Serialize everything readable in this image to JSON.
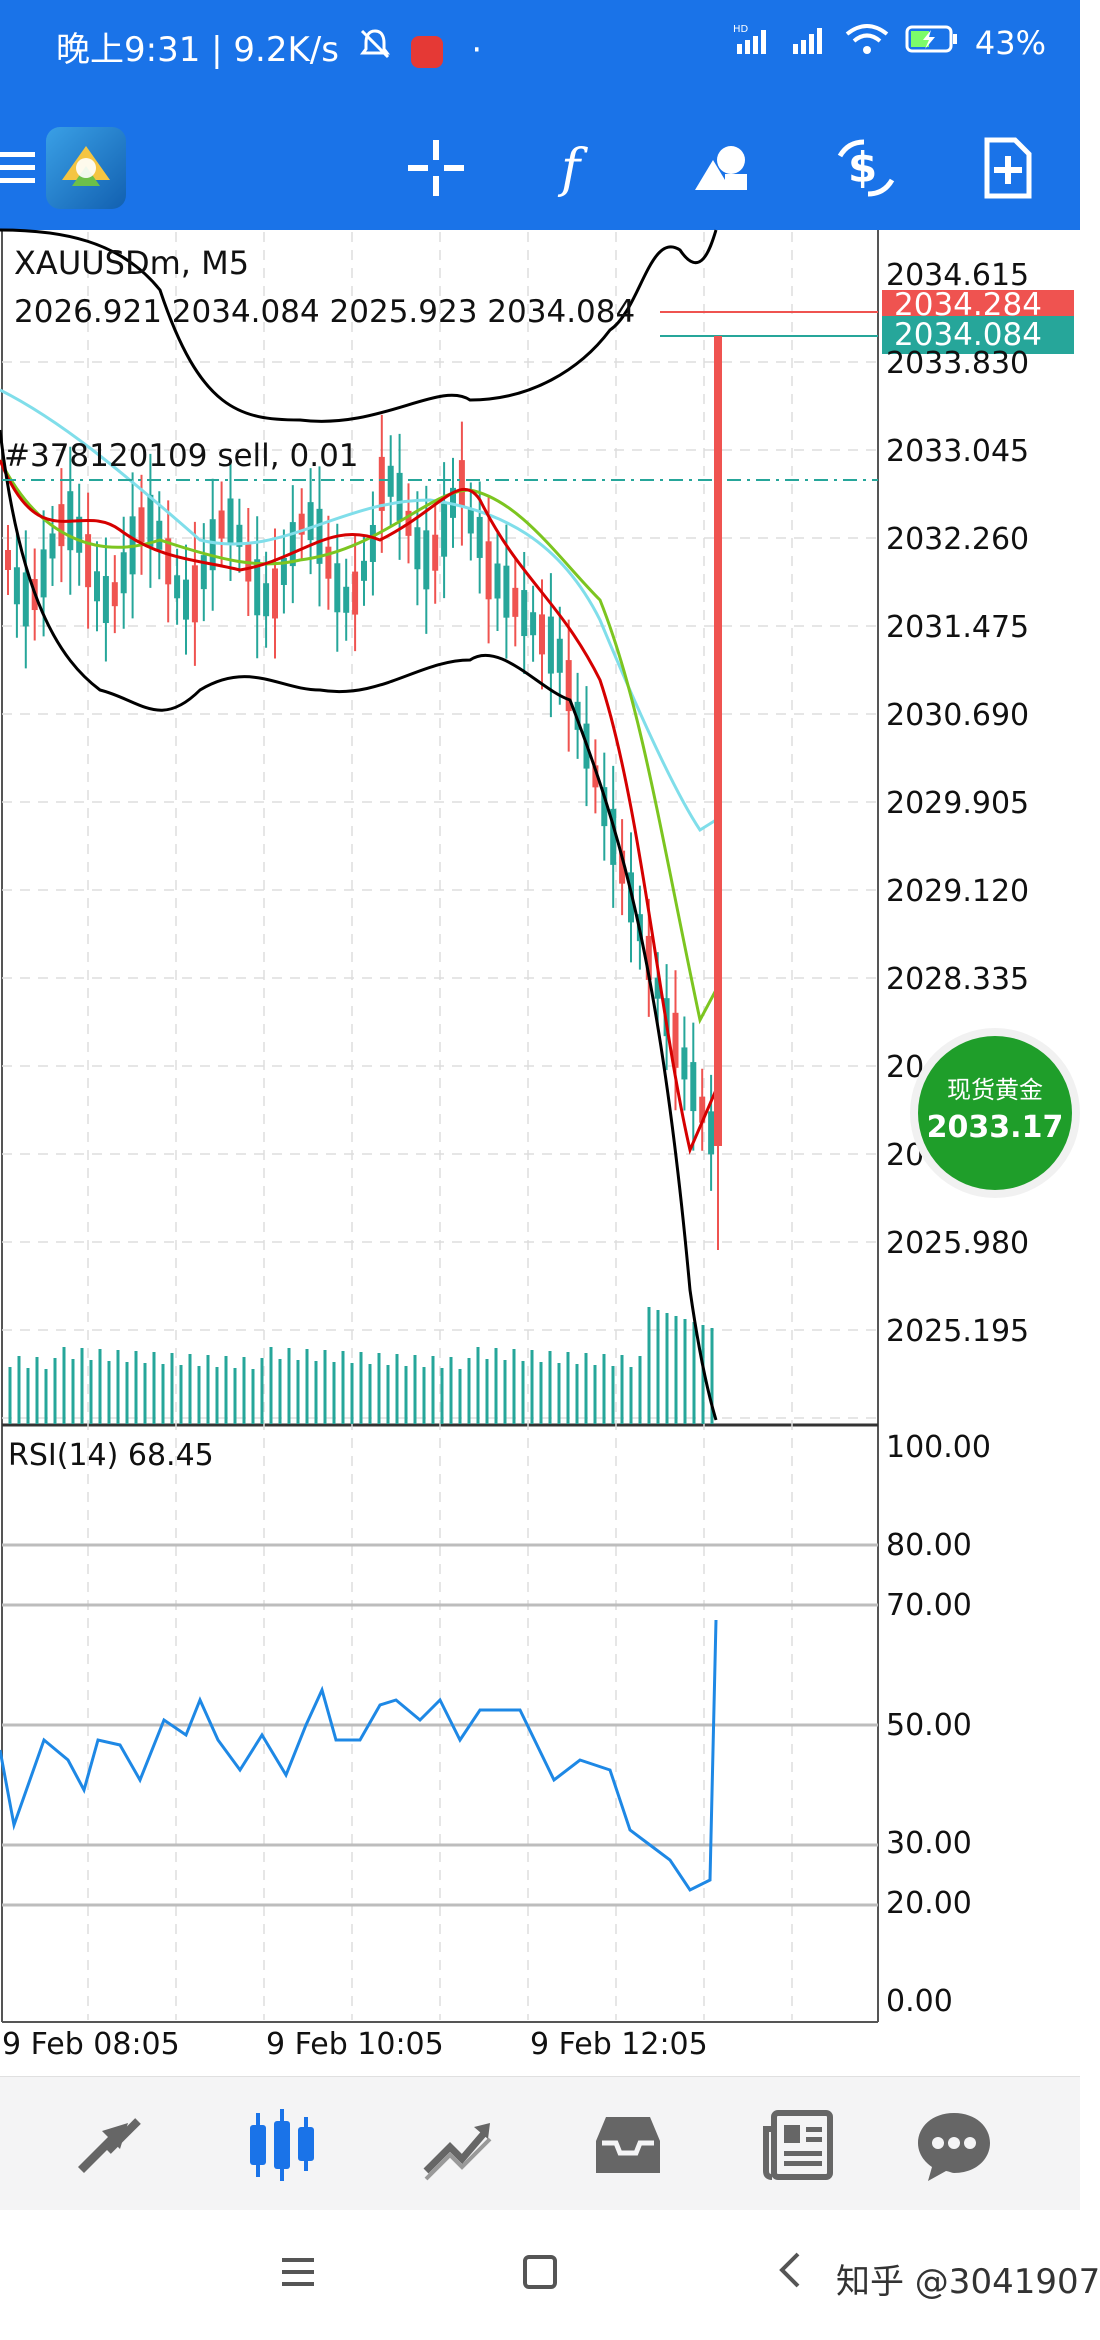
{
  "status_bar": {
    "time_text": "晚上9:31 | 9.2K/s",
    "extra_dot": "·",
    "battery": "43%",
    "network_label": "HD"
  },
  "toolbar": {
    "icons": [
      "menu-icon",
      "metatrader-logo",
      "crosshair-icon",
      "function-icon",
      "objects-icon",
      "trade-icon",
      "new-order-icon"
    ]
  },
  "chart": {
    "symbol": "XAUUSDm, M5",
    "ohlc": "2026.921 2034.084 2025.923 2034.084",
    "order_line": "#378120109 sell, 0.01",
    "ask_tag": "2034.284",
    "bid_tag": "2034.084",
    "price_axis": [
      "2034.615",
      "2033.830",
      "2033.045",
      "2032.260",
      "2031.475",
      "2030.690",
      "2029.905",
      "2029.120",
      "2028.335",
      "20",
      "20",
      "2025.980",
      "2025.195"
    ],
    "rsi_title": "RSI(14) 68.45",
    "rsi_axis": [
      "100.00",
      "80.00",
      "70.00",
      "50.00",
      "30.00",
      "20.00",
      "0.00"
    ],
    "time_axis": [
      "9 Feb 08:05",
      "9 Feb 10:05",
      "9 Feb 12:05"
    ],
    "colors": {
      "ask": "#ef5350",
      "bid": "#26a69a",
      "candle_bull": "#26a69a",
      "candle_bear": "#ef5350",
      "ma_red": "#d50000",
      "ma_green": "#7cc520",
      "ma_cyan": "#80deea",
      "bands": "#000000",
      "rsi": "#1e88e5"
    }
  },
  "gold_badge": {
    "title": "现货黄金",
    "price": "2033.17"
  },
  "bottom_nav": {
    "items": [
      "quotes-icon",
      "chart-icon",
      "trade-icon",
      "history-icon",
      "news-icon",
      "chat-icon"
    ],
    "active": "chart-icon"
  },
  "watermark": "知乎 @3041907"
}
